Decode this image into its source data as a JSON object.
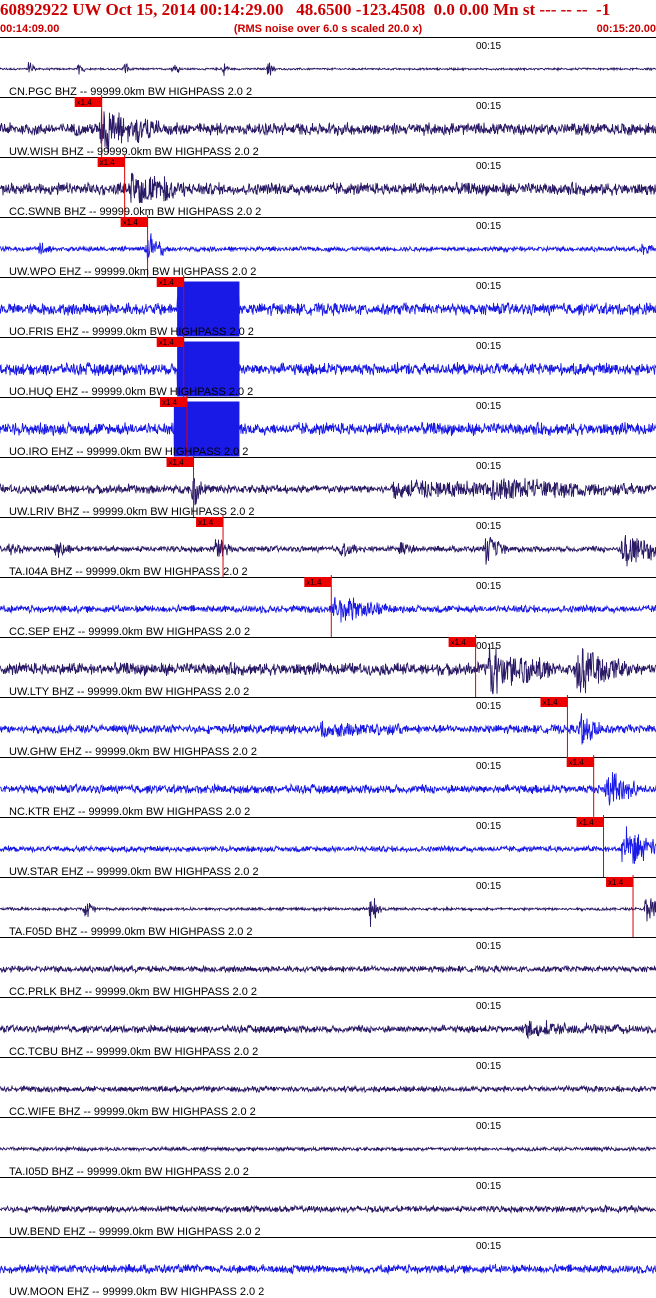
{
  "header": {
    "title": "60892922 UW Oct 15, 2014 00:14:29.00   48.6500 -123.4508  0.0 0.00 Mn st --- -- --  -1",
    "start_time": "00:14:09.00",
    "note": "(RMS noise over 6.0 s scaled 20.0 x)",
    "end_time": "00:15:20.00"
  },
  "colors": {
    "header": "#cc0000",
    "trace_blue": "#1a1ae6",
    "trace_navy": "#2b1a66",
    "pick_box": "#ee0000",
    "grid": "#000000"
  },
  "chart_data": {
    "type": "seismogram",
    "time_tick_label": "00:15",
    "pick_label": "x1.4",
    "channels": [
      {
        "label": "CN.PGC BHZ -- 99999.0km BW  HIGHPASS  2.0  2",
        "color": "navy",
        "noise": 0.04,
        "pick": null,
        "events": [
          [
            0.045,
            0.5,
            0.6
          ],
          [
            0.12,
            0.4,
            0.6
          ],
          [
            0.19,
            0.45,
            0.6
          ],
          [
            0.265,
            0.55,
            0.6
          ],
          [
            0.34,
            0.5,
            0.6
          ],
          [
            0.41,
            0.6,
            0.6
          ]
        ]
      },
      {
        "label": "UW.WISH BHZ -- 99999.0km BW  HIGHPASS  2.0  2",
        "color": "navy",
        "noise": 0.25,
        "pick": 0.155,
        "events": [
          [
            0.155,
            1.4,
            3.5
          ],
          [
            0.21,
            0.7,
            2.0
          ]
        ]
      },
      {
        "label": "CC.SWNB BHZ -- 99999.0km BW  HIGHPASS  2.0  2",
        "color": "navy",
        "noise": 0.25,
        "pick": 0.19,
        "events": [
          [
            0.2,
            1.0,
            3.5
          ],
          [
            0.25,
            0.5,
            2.0
          ]
        ]
      },
      {
        "label": "UW.WPO EHZ -- 99999.0km BW  HIGHPASS  2.0  2",
        "color": "blue",
        "noise": 0.1,
        "pick": 0.225,
        "events": [
          [
            0.06,
            0.3,
            1.5
          ],
          [
            0.225,
            1.1,
            1.5
          ],
          [
            0.98,
            0.4,
            1.0
          ]
        ]
      },
      {
        "label": "UO.FRIS EHZ -- 99999.0km BW  HIGHPASS  2.0  2",
        "color": "blue",
        "noise": 0.25,
        "pick": 0.28,
        "events": [],
        "saturation": [
          0.27,
          0.365
        ]
      },
      {
        "label": "UO.HUQ EHZ -- 99999.0km BW  HIGHPASS  2.0  2",
        "color": "blue",
        "noise": 0.25,
        "pick": 0.28,
        "events": [],
        "saturation": [
          0.27,
          0.365
        ]
      },
      {
        "label": "UO.IRO EHZ -- 99999.0km BW  HIGHPASS  2.0  2",
        "color": "blue",
        "noise": 0.25,
        "pick": 0.285,
        "events": [],
        "saturation": [
          0.265,
          0.365
        ]
      },
      {
        "label": "UW.LRIV BHZ -- 99999.0km BW  HIGHPASS  2.0  2",
        "color": "navy",
        "noise": 0.18,
        "pick": 0.295,
        "events": [
          [
            0.295,
            0.8,
            1.2
          ],
          [
            0.6,
            0.35,
            20
          ],
          [
            0.75,
            0.35,
            15
          ]
        ]
      },
      {
        "label": "TA.I04A BHZ -- 99999.0km BW  HIGHPASS  2.0  2",
        "color": "navy",
        "noise": 0.12,
        "pick": 0.34,
        "events": [
          [
            0.015,
            0.3,
            1.5
          ],
          [
            0.085,
            0.4,
            1.5
          ],
          [
            0.33,
            0.7,
            1.5
          ],
          [
            0.52,
            0.4,
            1.5
          ],
          [
            0.61,
            0.35,
            1.5
          ],
          [
            0.74,
            0.8,
            2.0
          ],
          [
            0.95,
            1.1,
            5.0
          ]
        ]
      },
      {
        "label": "CC.SEP EHZ -- 99999.0km BW  HIGHPASS  2.0  2",
        "color": "blue",
        "noise": 0.15,
        "pick": 0.505,
        "events": [
          [
            0.51,
            0.8,
            5.0
          ]
        ]
      },
      {
        "label": "UW.LTY BHZ -- 99999.0km BW  HIGHPASS  2.0  2",
        "color": "navy",
        "noise": 0.25,
        "pick": 0.725,
        "events": [
          [
            0.745,
            1.2,
            6.0
          ],
          [
            0.88,
            1.2,
            5.0
          ]
        ]
      },
      {
        "label": "UW.GHW EHZ -- 99999.0km BW  HIGHPASS  2.0  2",
        "color": "blue",
        "noise": 0.18,
        "pick": 0.865,
        "events": [
          [
            0.49,
            0.3,
            8.0
          ],
          [
            0.885,
            0.9,
            2.0
          ]
        ]
      },
      {
        "label": "NC.KTR EHZ -- 99999.0km BW  HIGHPASS  2.0  2",
        "color": "blue",
        "noise": 0.18,
        "pick": 0.905,
        "events": [
          [
            0.925,
            1.0,
            3.0
          ]
        ]
      },
      {
        "label": "UW.STAR EHZ -- 99999.0km BW  HIGHPASS  2.0  2",
        "color": "blue",
        "noise": 0.12,
        "pick": 0.92,
        "events": [
          [
            0.95,
            1.1,
            5.0
          ]
        ]
      },
      {
        "label": "TA.F05D BHZ -- 99999.0km BW  HIGHPASS  2.0  2",
        "color": "navy",
        "noise": 0.06,
        "pick": 0.965,
        "events": [
          [
            0.13,
            0.6,
            1.0
          ],
          [
            0.565,
            0.9,
            1.0
          ],
          [
            0.985,
            0.9,
            1.5
          ]
        ]
      },
      {
        "label": "CC.PRLK BHZ -- 99999.0km BW  HIGHPASS  2.0  2",
        "color": "navy",
        "noise": 0.13,
        "pick": null,
        "events": []
      },
      {
        "label": "CC.TCBU BHZ -- 99999.0km BW  HIGHPASS  2.0  2",
        "color": "navy",
        "noise": 0.15,
        "pick": null,
        "events": [
          [
            0.8,
            0.3,
            10.0
          ]
        ]
      },
      {
        "label": "CC.WIFE BHZ -- 99999.0km BW  HIGHPASS  2.0  2",
        "color": "navy",
        "noise": 0.12,
        "pick": null,
        "events": []
      },
      {
        "label": "TA.I05D BHZ -- 99999.0km BW  HIGHPASS  2.0  2",
        "color": "navy",
        "noise": 0.08,
        "pick": null,
        "events": []
      },
      {
        "label": "UW.BEND EHZ -- 99999.0km BW  HIGHPASS  2.0  2",
        "color": "navy",
        "noise": 0.13,
        "pick": null,
        "events": []
      },
      {
        "label": "UW.MOON EHZ -- 99999.0km BW  HIGHPASS  2.0  2",
        "color": "blue",
        "noise": 0.18,
        "pick": null,
        "events": []
      }
    ]
  }
}
